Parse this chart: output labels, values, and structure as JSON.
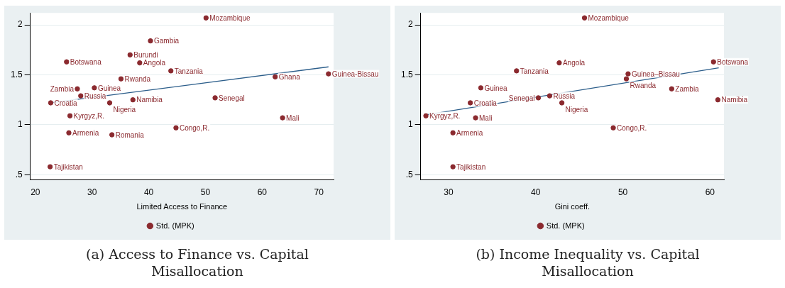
{
  "chart_data": [
    {
      "type": "scatter",
      "title": "(a) Access to Finance vs. Capital Misallocation",
      "xlabel": "Limited Access to Finance",
      "xlim": [
        19.1,
        72.6
      ],
      "xticks": [
        20,
        30,
        40,
        50,
        60,
        70
      ],
      "ylim": [
        0.45,
        2.12
      ],
      "yticks": [
        {
          "value": 0.5,
          "label": ".5"
        },
        1,
        1.5,
        2
      ],
      "grid": "y",
      "legend": "bottom",
      "series": [
        {
          "name": "Std. (MPK)",
          "color": "#8b2a2f",
          "marker": "circle",
          "x": [
            50.1,
            40.3,
            36.7,
            38.4,
            25.5,
            43.9,
            35.1,
            27.4,
            30.4,
            28.0,
            22.7,
            33.1,
            37.2,
            26.1,
            25.9,
            33.5,
            44.8,
            22.6,
            62.3,
            51.7,
            63.6,
            71.7
          ],
          "values": [
            2.07,
            1.84,
            1.7,
            1.62,
            1.63,
            1.54,
            1.46,
            1.36,
            1.37,
            1.29,
            1.22,
            1.22,
            1.25,
            1.09,
            0.92,
            0.9,
            0.97,
            0.58,
            1.48,
            1.27,
            1.07,
            1.51
          ]
        },
        {
          "type": "line",
          "color": "#2b5d8a",
          "marker": "none",
          "x": [
            22.7,
            71.7
          ],
          "values": [
            1.22,
            1.58
          ]
        }
      ],
      "annotations": [
        {
          "text": "Mozambique",
          "x": 50.1,
          "y": 2.07
        },
        {
          "text": "Gambia",
          "x": 40.3,
          "y": 1.84
        },
        {
          "text": "Burundi",
          "x": 36.7,
          "y": 1.7
        },
        {
          "text": "Angola",
          "x": 38.4,
          "y": 1.62
        },
        {
          "text": "Botswana",
          "x": 25.5,
          "y": 1.63
        },
        {
          "text": "Tanzania",
          "x": 43.9,
          "y": 1.54
        },
        {
          "text": "Rwanda",
          "x": 35.1,
          "y": 1.46
        },
        {
          "text": "Zambia",
          "x": 27.4,
          "y": 1.36
        },
        {
          "text": "Guinea",
          "x": 30.4,
          "y": 1.37
        },
        {
          "text": "Russia",
          "x": 28.0,
          "y": 1.29
        },
        {
          "text": "Croatia",
          "x": 22.7,
          "y": 1.22
        },
        {
          "text": "Nigeria",
          "x": 33.1,
          "y": 1.22
        },
        {
          "text": "Namibia",
          "x": 37.2,
          "y": 1.25
        },
        {
          "text": "Kyrgyz,R.",
          "x": 26.1,
          "y": 1.09
        },
        {
          "text": "Armenia",
          "x": 25.9,
          "y": 0.92
        },
        {
          "text": "Romania",
          "x": 33.5,
          "y": 0.9
        },
        {
          "text": "Congo,R.",
          "x": 44.8,
          "y": 0.97
        },
        {
          "text": "Tajikistan",
          "x": 22.6,
          "y": 0.58
        },
        {
          "text": "Ghana",
          "x": 62.3,
          "y": 1.48
        },
        {
          "text": "Senegal",
          "x": 51.7,
          "y": 1.27
        },
        {
          "text": "Mali",
          "x": 63.6,
          "y": 1.07
        },
        {
          "text": "Guinea-Bissau",
          "x": 71.7,
          "y": 1.51
        }
      ]
    },
    {
      "type": "scatter",
      "title": "(b) Income Inequality vs. Capital Misallocation",
      "xlabel": "Gini coeff.",
      "xlim": [
        26.8,
        61.6
      ],
      "xticks": [
        30,
        40,
        50,
        60
      ],
      "ylim": [
        0.45,
        2.12
      ],
      "yticks": [
        {
          "value": 0.5,
          "label": ".5"
        },
        1,
        1.5,
        2
      ],
      "grid": "y",
      "legend": "bottom",
      "series": [
        {
          "name": "Std. (MPK)",
          "color": "#8b2a2f",
          "marker": "circle",
          "x": [
            27.4,
            32.5,
            33.7,
            33.1,
            30.5,
            30.5,
            37.8,
            45.6,
            42.7,
            60.4,
            50.6,
            50.4,
            55.6,
            60.9,
            41.6,
            40.3,
            43.0,
            48.9
          ],
          "values": [
            1.09,
            1.22,
            1.37,
            1.07,
            0.92,
            0.58,
            1.54,
            2.07,
            1.62,
            1.63,
            1.51,
            1.46,
            1.36,
            1.25,
            1.29,
            1.27,
            1.22,
            0.97
          ]
        },
        {
          "type": "line",
          "color": "#2b5d8a",
          "marker": "none",
          "x": [
            27.4,
            61.0
          ],
          "values": [
            1.1,
            1.57
          ]
        }
      ],
      "annotations": [
        {
          "text": "Kyrgyz,R.",
          "x": 27.4,
          "y": 1.09
        },
        {
          "text": "Croatia",
          "x": 32.5,
          "y": 1.22
        },
        {
          "text": "Guinea",
          "x": 33.7,
          "y": 1.37
        },
        {
          "text": "Mali",
          "x": 33.1,
          "y": 1.07
        },
        {
          "text": "Armenia",
          "x": 30.5,
          "y": 0.92
        },
        {
          "text": "Tajikistan",
          "x": 30.5,
          "y": 0.58
        },
        {
          "text": "Tanzania",
          "x": 37.8,
          "y": 1.54
        },
        {
          "text": "Mozambique",
          "x": 45.6,
          "y": 2.07
        },
        {
          "text": "Angola",
          "x": 42.7,
          "y": 1.62
        },
        {
          "text": "Botswana",
          "x": 60.4,
          "y": 1.63
        },
        {
          "text": "Guinea–Bissau",
          "x": 50.6,
          "y": 1.51
        },
        {
          "text": "Rwanda",
          "x": 50.4,
          "y": 1.46
        },
        {
          "text": "Zambia",
          "x": 55.6,
          "y": 1.36
        },
        {
          "text": "Namibia",
          "x": 60.9,
          "y": 1.25
        },
        {
          "text": "Russia",
          "x": 41.6,
          "y": 1.29
        },
        {
          "text": "Senegal",
          "x": 40.3,
          "y": 1.27
        },
        {
          "text": "Nigeria",
          "x": 43.0,
          "y": 1.22
        },
        {
          "text": "Congo,R.",
          "x": 48.9,
          "y": 0.97
        }
      ]
    }
  ]
}
